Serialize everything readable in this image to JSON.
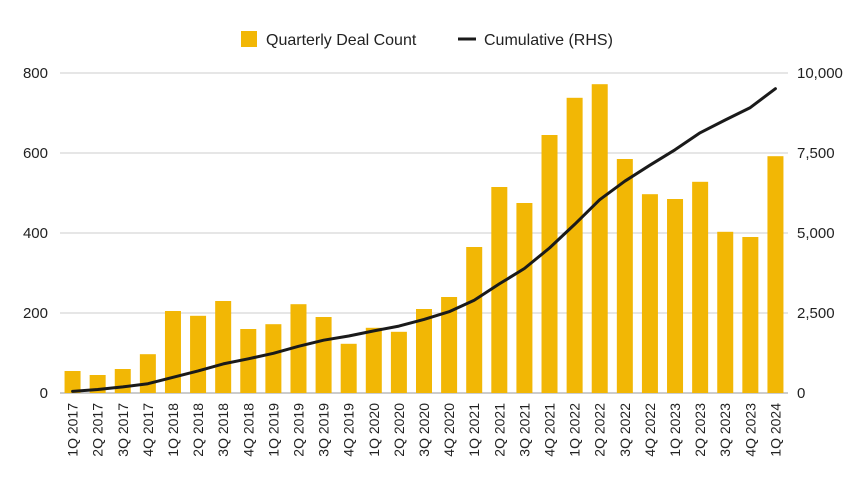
{
  "chart_data": {
    "type": "bar",
    "categories": [
      "1Q 2017",
      "2Q 2017",
      "3Q 2017",
      "4Q 2017",
      "1Q 2018",
      "2Q 2018",
      "3Q 2018",
      "4Q 2018",
      "1Q 2019",
      "2Q 2019",
      "3Q 2019",
      "4Q 2019",
      "1Q 2020",
      "2Q 2020",
      "3Q 2020",
      "4Q 2020",
      "1Q 2021",
      "2Q 2021",
      "3Q 2021",
      "4Q 2021",
      "1Q 2022",
      "2Q 2022",
      "3Q 2022",
      "4Q 2022",
      "1Q 2023",
      "2Q 2023",
      "3Q 2023",
      "4Q 2023",
      "1Q 2024"
    ],
    "series": [
      {
        "name": "Quarterly Deal Count",
        "type": "bar",
        "axis": "left",
        "values": [
          55,
          45,
          60,
          97,
          205,
          193,
          230,
          160,
          172,
          222,
          190,
          123,
          163,
          153,
          210,
          240,
          365,
          515,
          475,
          645,
          738,
          772,
          585,
          497,
          485,
          528,
          403,
          390,
          592
        ]
      },
      {
        "name": "Cumulative (RHS)",
        "type": "line",
        "axis": "right",
        "values": [
          50,
          110,
          190,
          290,
          490,
          690,
          910,
          1070,
          1240,
          1460,
          1650,
          1780,
          1940,
          2090,
          2300,
          2540,
          2900,
          3410,
          3890,
          4530,
          5270,
          6040,
          6620,
          7120,
          7600,
          8130,
          8530,
          8920,
          9510
        ]
      }
    ],
    "y_left": {
      "ticks": [
        "0",
        "200",
        "400",
        "600",
        "800"
      ],
      "ylim": [
        0,
        800
      ]
    },
    "y_right": {
      "ticks": [
        "0",
        "2,500",
        "5,000",
        "7,500",
        "10,000"
      ],
      "ylim": [
        0,
        10000
      ]
    },
    "legend": "top-center",
    "grid": true,
    "colors": {
      "bar": "#F2B705",
      "line": "#1a1a1a",
      "grid": "#cccccc"
    }
  }
}
